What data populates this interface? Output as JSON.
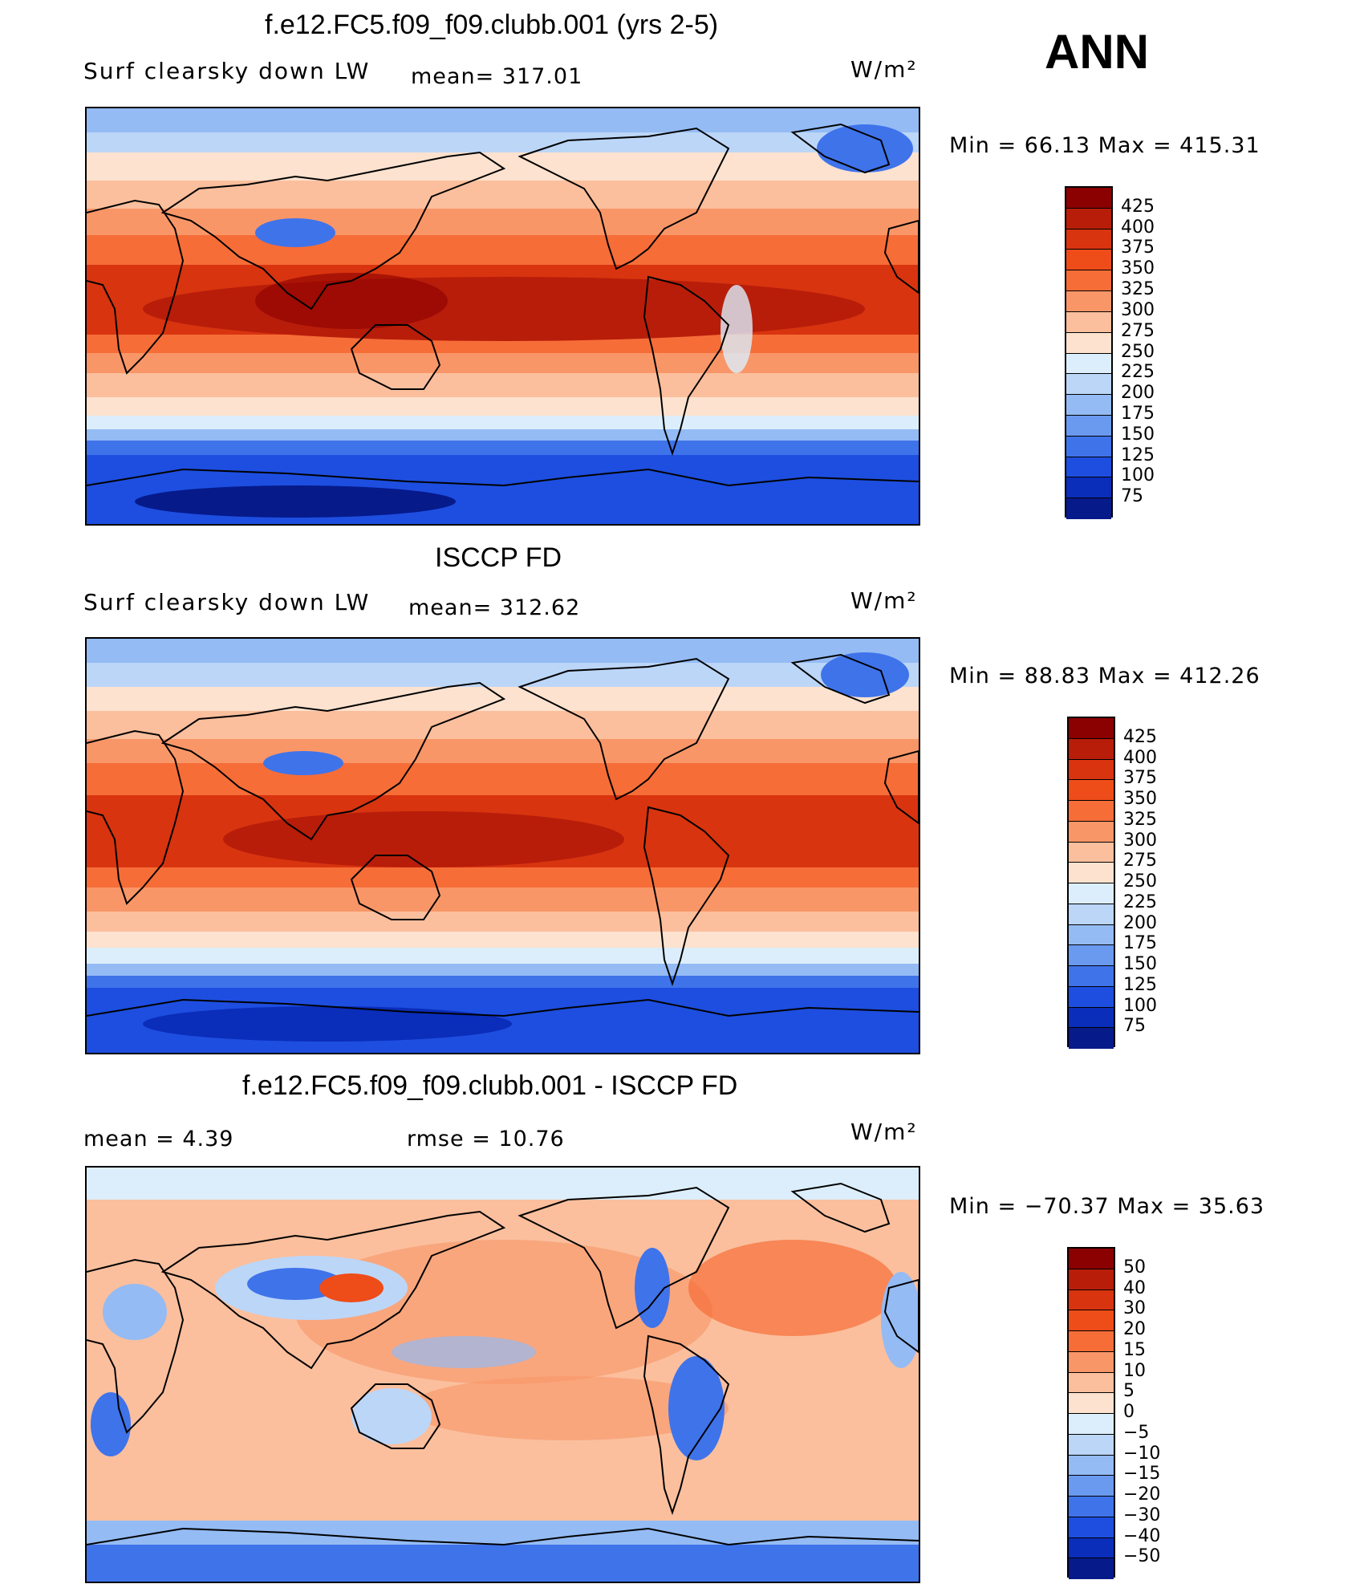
{
  "season": "ANN",
  "panels": [
    {
      "id": "model",
      "title": "f.e12.FC5.f09_f09.clubb.001 (yrs 2-5)",
      "left_label": "Surf clearsky down LW",
      "stat1": "mean= 317.01",
      "stat2": "",
      "units": "W/m²",
      "minmax": "Min =   66.13 Max = 415.31",
      "levels": [
        "425",
        "400",
        "375",
        "350",
        "325",
        "300",
        "275",
        "250",
        "225",
        "200",
        "175",
        "150",
        "125",
        "100",
        "75"
      ],
      "colors": [
        "#8b0000",
        "#b81d0a",
        "#d8340f",
        "#ee4c19",
        "#f66d38",
        "#f99668",
        "#fbbf9d",
        "#fde2cf",
        "#dceefb",
        "#bcd6f8",
        "#94bbf4",
        "#6a9af0",
        "#3f73ea",
        "#1d4ee0",
        "#0a2dba",
        "#061a8a"
      ]
    },
    {
      "id": "obs",
      "title": "ISCCP FD",
      "left_label": "Surf clearsky down LW",
      "stat1": "mean= 312.62",
      "stat2": "",
      "units": "W/m²",
      "minmax": "Min =   88.83 Max = 412.26",
      "levels": [
        "425",
        "400",
        "375",
        "350",
        "325",
        "300",
        "275",
        "250",
        "225",
        "200",
        "175",
        "150",
        "125",
        "100",
        "75"
      ],
      "colors": [
        "#8b0000",
        "#b81d0a",
        "#d8340f",
        "#ee4c19",
        "#f66d38",
        "#f99668",
        "#fbbf9d",
        "#fde2cf",
        "#dceefb",
        "#bcd6f8",
        "#94bbf4",
        "#6a9af0",
        "#3f73ea",
        "#1d4ee0",
        "#0a2dba",
        "#061a8a"
      ]
    },
    {
      "id": "diff",
      "title": "f.e12.FC5.f09_f09.clubb.001 - ISCCP FD",
      "left_label": "mean =    4.39",
      "stat1": "rmse =   10.76",
      "stat2": "",
      "units": "W/m²",
      "minmax": "Min = −70.37 Max =   35.63",
      "levels": [
        "50",
        "40",
        "30",
        "20",
        "15",
        "10",
        "5",
        "0",
        "−5",
        "−10",
        "−15",
        "−20",
        "−30",
        "−40",
        "−50"
      ],
      "colors": [
        "#8b0000",
        "#b81d0a",
        "#d8340f",
        "#ee4c19",
        "#f66d38",
        "#f99668",
        "#fbbf9d",
        "#fde2cf",
        "#dceefb",
        "#bcd6f8",
        "#94bbf4",
        "#6a9af0",
        "#3f73ea",
        "#1d4ee0",
        "#0a2dba",
        "#061a8a"
      ]
    }
  ]
}
